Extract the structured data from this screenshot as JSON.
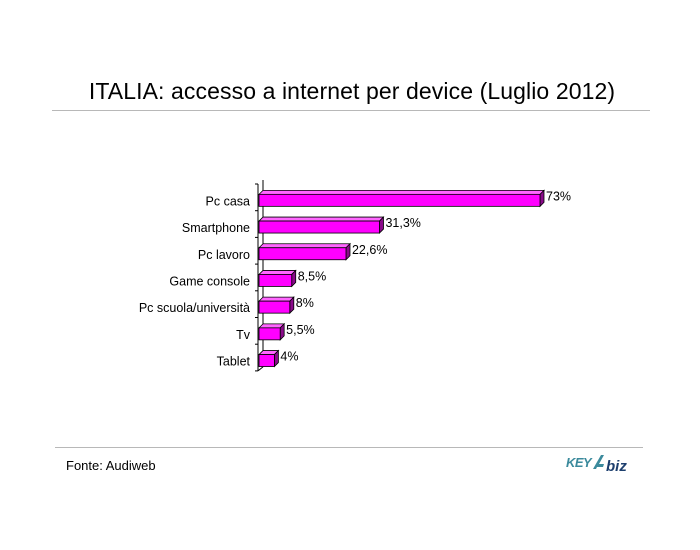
{
  "page": {
    "title": "ITALIA: accesso a internet per device (Luglio 2012)",
    "source": "Fonte: Audiweb",
    "logo_text": "KEY4biz"
  },
  "colors": {
    "bar_front": "#ff00ff",
    "bar_top": "#ff66ff",
    "bar_side": "#8a0a8a",
    "bar_outline": "#000000",
    "rule": "#b8b8b8",
    "logo_key": "#3b8a9c",
    "logo_biz": "#1d3f6e"
  },
  "chart_data": {
    "type": "bar",
    "orientation": "horizontal",
    "categories": [
      "Pc casa",
      "Smartphone",
      "Pc lavoro",
      "Game console",
      "Pc scuola/università",
      "Tv",
      "Tablet"
    ],
    "values": [
      73,
      31.3,
      22.6,
      8.5,
      8,
      5.5,
      4
    ],
    "value_labels": [
      "73%",
      "31,3%",
      "22,6%",
      "8,5%",
      "8%",
      "5,5%",
      "4%"
    ],
    "unit": "%",
    "xlim": [
      0,
      100
    ],
    "grid": false,
    "legend": false,
    "style": "3d"
  }
}
